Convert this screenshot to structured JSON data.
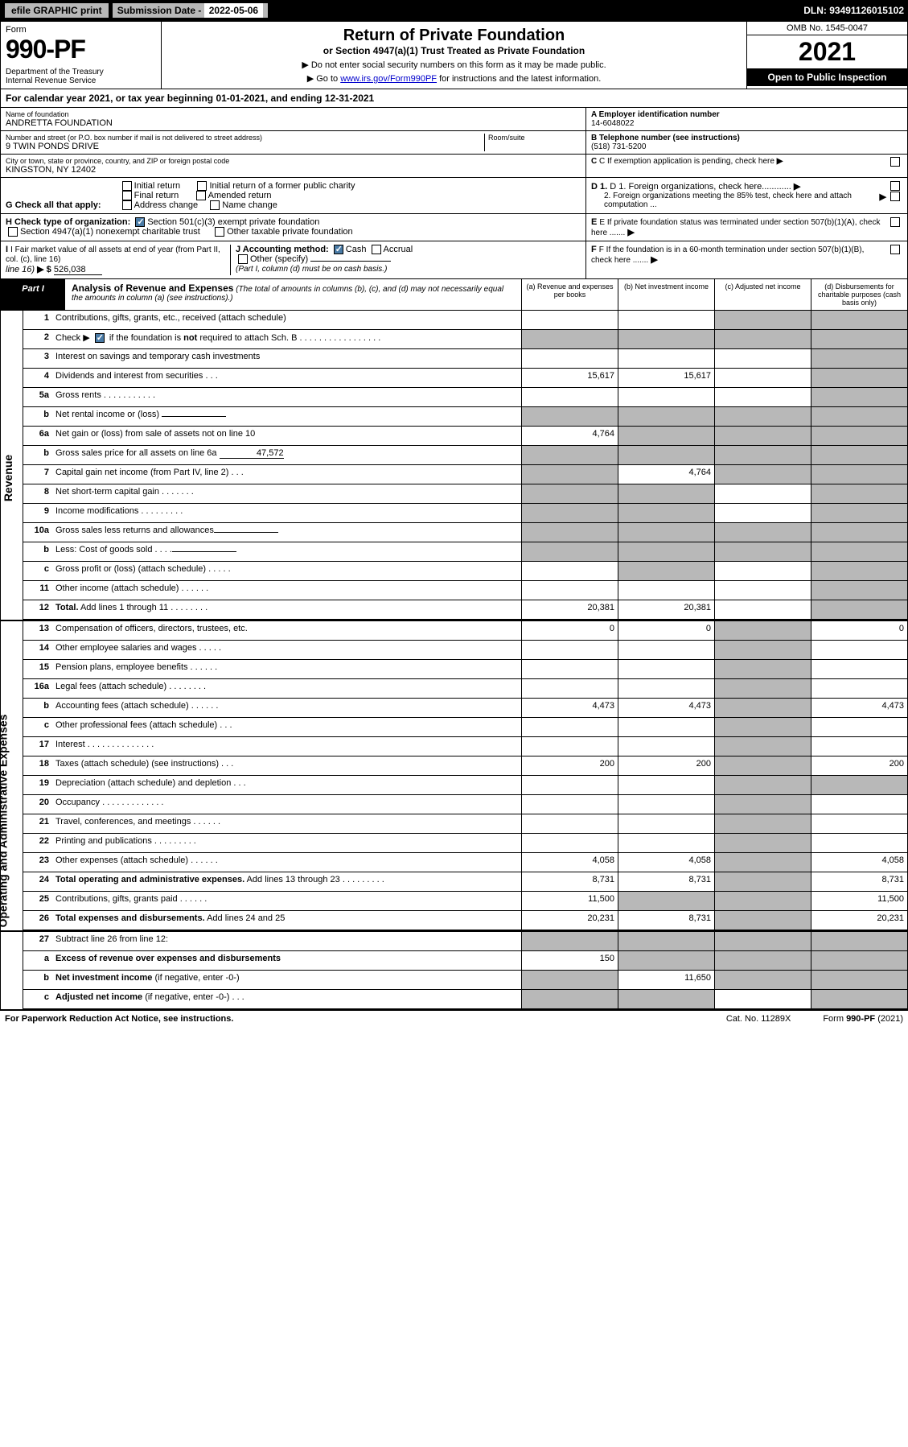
{
  "topbar": {
    "efile_btn": "efile GRAPHIC print",
    "sub_label": "Submission Date - ",
    "sub_date": "2022-05-06",
    "dln_label": "DLN: ",
    "dln": "93491126015102"
  },
  "header": {
    "form_label": "Form",
    "form_number": "990-PF",
    "dept1": "Department of the Treasury",
    "dept2": "Internal Revenue Service",
    "title": "Return of Private Foundation",
    "subtitle": "or Section 4947(a)(1) Trust Treated as Private Foundation",
    "instr1": "▶ Do not enter social security numbers on this form as it may be made public.",
    "instr2_pre": "▶ Go to ",
    "instr2_link": "www.irs.gov/Form990PF",
    "instr2_post": " for instructions and the latest information.",
    "omb": "OMB No. 1545-0047",
    "year": "2021",
    "open": "Open to Public Inspection"
  },
  "cal_year": {
    "pre": "For calendar year 2021, or tax year beginning ",
    "begin": "01-01-2021",
    "mid": ", and ending ",
    "end": "12-31-2021"
  },
  "info": {
    "name_lbl": "Name of foundation",
    "name": "ANDRETTA FOUNDATION",
    "addr_lbl": "Number and street (or P.O. box number if mail is not delivered to street address)",
    "addr": "9 TWIN PONDS DRIVE",
    "room_lbl": "Room/suite",
    "room": "",
    "city_lbl": "City or town, state or province, country, and ZIP or foreign postal code",
    "city": "KINGSTON, NY  12402",
    "a_lbl": "A Employer identification number",
    "a_val": "14-6048022",
    "b_lbl": "B Telephone number (see instructions)",
    "b_val": "(518) 731-5200",
    "c_lbl": "C If exemption application is pending, check here",
    "d1_lbl": "D 1. Foreign organizations, check here............",
    "d2_lbl": "2. Foreign organizations meeting the 85% test, check here and attach computation ...",
    "e_lbl": "E  If private foundation status was terminated under section 507(b)(1)(A), check here .......",
    "f_lbl": "F  If the foundation is in a 60-month termination under section 507(b)(1)(B), check here ......."
  },
  "section_g": {
    "label": "G Check all that apply:",
    "opts": [
      "Initial return",
      "Final return",
      "Address change",
      "Initial return of a former public charity",
      "Amended return",
      "Name change"
    ]
  },
  "section_h": {
    "label": "H Check type of organization:",
    "opt1": "Section 501(c)(3) exempt private foundation",
    "opt2": "Section 4947(a)(1) nonexempt charitable trust",
    "opt3": "Other taxable private foundation"
  },
  "section_i": {
    "label": "I Fair market value of all assets at end of year (from Part II, col. (c), line 16)",
    "arrow": "▶ $",
    "val": "526,038"
  },
  "section_j": {
    "label": "J Accounting method:",
    "cash": "Cash",
    "accrual": "Accrual",
    "other": "Other (specify)",
    "note": "(Part I, column (d) must be on cash basis.)"
  },
  "part1": {
    "label": "Part I",
    "title": "Analysis of Revenue and Expenses",
    "title_note": " (The total of amounts in columns (b), (c), and (d) may not necessarily equal the amounts in column (a) (see instructions).)",
    "col_a": "(a)   Revenue and expenses per books",
    "col_b": "(b)   Net investment income",
    "col_c": "(c)   Adjusted net income",
    "col_d": "(d)   Disbursements for charitable purposes (cash basis only)"
  },
  "side_revenue": "Revenue",
  "side_expenses": "Operating and Administrative Expenses",
  "rows": [
    {
      "n": "1",
      "d": "Contributions, gifts, grants, etc., received (attach schedule)",
      "a": "",
      "b": "",
      "c": "grey",
      "dcol": "grey"
    },
    {
      "n": "2",
      "d": "Check ▶ [✓] if the foundation is <b>not</b> required to attach Sch. B   .  .  .  .  .  .  .  .  .  .  .  .  .  .  .  .  .",
      "a": "grey",
      "b": "grey",
      "c": "grey",
      "dcol": "grey",
      "checked": true
    },
    {
      "n": "3",
      "d": "Interest on savings and temporary cash investments",
      "a": "",
      "b": "",
      "c": "",
      "dcol": "grey"
    },
    {
      "n": "4",
      "d": "Dividends and interest from securities   .   .   .",
      "a": "15,617",
      "b": "15,617",
      "c": "",
      "dcol": "grey"
    },
    {
      "n": "5a",
      "d": "Gross rents   .   .   .   .   .   .   .   .   .   .   .",
      "a": "",
      "b": "",
      "c": "",
      "dcol": "grey"
    },
    {
      "n": "b",
      "d": "Net rental income or (loss) ",
      "a": "grey",
      "b": "grey",
      "c": "grey",
      "dcol": "grey",
      "inline": ""
    },
    {
      "n": "6a",
      "d": "Net gain or (loss) from sale of assets not on line 10",
      "a": "4,764",
      "b": "grey",
      "c": "grey",
      "dcol": "grey"
    },
    {
      "n": "b",
      "d": "Gross sales price for all assets on line 6a ",
      "a": "grey",
      "b": "grey",
      "c": "grey",
      "dcol": "grey",
      "inline": "47,572"
    },
    {
      "n": "7",
      "d": "Capital gain net income (from Part IV, line 2)   .   .   .",
      "a": "grey",
      "b": "4,764",
      "c": "grey",
      "dcol": "grey"
    },
    {
      "n": "8",
      "d": "Net short-term capital gain   .   .   .   .   .   .   .",
      "a": "grey",
      "b": "grey",
      "c": "",
      "dcol": "grey"
    },
    {
      "n": "9",
      "d": "Income modifications   .   .   .   .   .   .   .   .   .",
      "a": "grey",
      "b": "grey",
      "c": "",
      "dcol": "grey"
    },
    {
      "n": "10a",
      "d": "Gross sales less returns and allowances",
      "a": "grey",
      "b": "grey",
      "c": "grey",
      "dcol": "grey",
      "inline": ""
    },
    {
      "n": "b",
      "d": "Less: Cost of goods sold   .   .   .   .",
      "a": "grey",
      "b": "grey",
      "c": "grey",
      "dcol": "grey",
      "inline": ""
    },
    {
      "n": "c",
      "d": "Gross profit or (loss) (attach schedule)   .   .   .   .   .",
      "a": "",
      "b": "grey",
      "c": "",
      "dcol": "grey"
    },
    {
      "n": "11",
      "d": "Other income (attach schedule)   .   .   .   .   .   .",
      "a": "",
      "b": "",
      "c": "",
      "dcol": "grey"
    },
    {
      "n": "12",
      "d": "<b>Total.</b> Add lines 1 through 11   .   .   .   .   .   .   .   .",
      "a": "20,381",
      "b": "20,381",
      "c": "",
      "dcol": "grey"
    }
  ],
  "exp_rows": [
    {
      "n": "13",
      "d": "Compensation of officers, directors, trustees, etc.",
      "a": "0",
      "b": "0",
      "c": "grey",
      "dcol": "0"
    },
    {
      "n": "14",
      "d": "Other employee salaries and wages   .   .   .   .   .",
      "a": "",
      "b": "",
      "c": "grey",
      "dcol": ""
    },
    {
      "n": "15",
      "d": "Pension plans, employee benefits   .   .   .   .   .   .",
      "a": "",
      "b": "",
      "c": "grey",
      "dcol": ""
    },
    {
      "n": "16a",
      "d": "Legal fees (attach schedule)   .   .   .   .   .   .   .   .",
      "a": "",
      "b": "",
      "c": "grey",
      "dcol": ""
    },
    {
      "n": "b",
      "d": "Accounting fees (attach schedule)   .   .   .   .   .   .",
      "a": "4,473",
      "b": "4,473",
      "c": "grey",
      "dcol": "4,473"
    },
    {
      "n": "c",
      "d": "Other professional fees (attach schedule)   .   .   .",
      "a": "",
      "b": "",
      "c": "grey",
      "dcol": ""
    },
    {
      "n": "17",
      "d": "Interest   .   .   .   .   .   .   .   .   .   .   .   .   .   .",
      "a": "",
      "b": "",
      "c": "grey",
      "dcol": ""
    },
    {
      "n": "18",
      "d": "Taxes (attach schedule) (see instructions)   .   .   .",
      "a": "200",
      "b": "200",
      "c": "grey",
      "dcol": "200"
    },
    {
      "n": "19",
      "d": "Depreciation (attach schedule) and depletion   .   .   .",
      "a": "",
      "b": "",
      "c": "grey",
      "dcol": "grey"
    },
    {
      "n": "20",
      "d": "Occupancy   .   .   .   .   .   .   .   .   .   .   .   .   .",
      "a": "",
      "b": "",
      "c": "grey",
      "dcol": ""
    },
    {
      "n": "21",
      "d": "Travel, conferences, and meetings   .   .   .   .   .   .",
      "a": "",
      "b": "",
      "c": "grey",
      "dcol": ""
    },
    {
      "n": "22",
      "d": "Printing and publications   .   .   .   .   .   .   .   .   .",
      "a": "",
      "b": "",
      "c": "grey",
      "dcol": ""
    },
    {
      "n": "23",
      "d": "Other expenses (attach schedule)   .   .   .   .   .   .",
      "a": "4,058",
      "b": "4,058",
      "c": "grey",
      "dcol": "4,058"
    },
    {
      "n": "24",
      "d": "<b>Total operating and administrative expenses.</b> Add lines 13 through 23   .   .   .   .   .   .   .   .   .",
      "a": "8,731",
      "b": "8,731",
      "c": "grey",
      "dcol": "8,731"
    },
    {
      "n": "25",
      "d": "Contributions, gifts, grants paid   .   .   .   .   .   .",
      "a": "11,500",
      "b": "grey",
      "c": "grey",
      "dcol": "11,500"
    },
    {
      "n": "26",
      "d": "<b>Total expenses and disbursements.</b> Add lines 24 and 25",
      "a": "20,231",
      "b": "8,731",
      "c": "grey",
      "dcol": "20,231"
    }
  ],
  "bottom_rows": [
    {
      "n": "27",
      "d": "Subtract line 26 from line 12:",
      "a": "grey",
      "b": "grey",
      "c": "grey",
      "dcol": "grey"
    },
    {
      "n": "a",
      "d": "<b>Excess of revenue over expenses and disbursements</b>",
      "a": "150",
      "b": "grey",
      "c": "grey",
      "dcol": "grey"
    },
    {
      "n": "b",
      "d": "<b>Net investment income</b> (if negative, enter -0-)",
      "a": "grey",
      "b": "11,650",
      "c": "grey",
      "dcol": "grey"
    },
    {
      "n": "c",
      "d": "<b>Adjusted net income</b> (if negative, enter -0-)   .   .   .",
      "a": "grey",
      "b": "grey",
      "c": "",
      "dcol": "grey"
    }
  ],
  "footer": {
    "left": "For Paperwork Reduction Act Notice, see instructions.",
    "mid": "Cat. No. 11289X",
    "right": "Form 990-PF (2021)"
  },
  "colors": {
    "black": "#000000",
    "grey": "#b8b8b8",
    "link": "#0000cc",
    "check": "#4a7ba6"
  }
}
